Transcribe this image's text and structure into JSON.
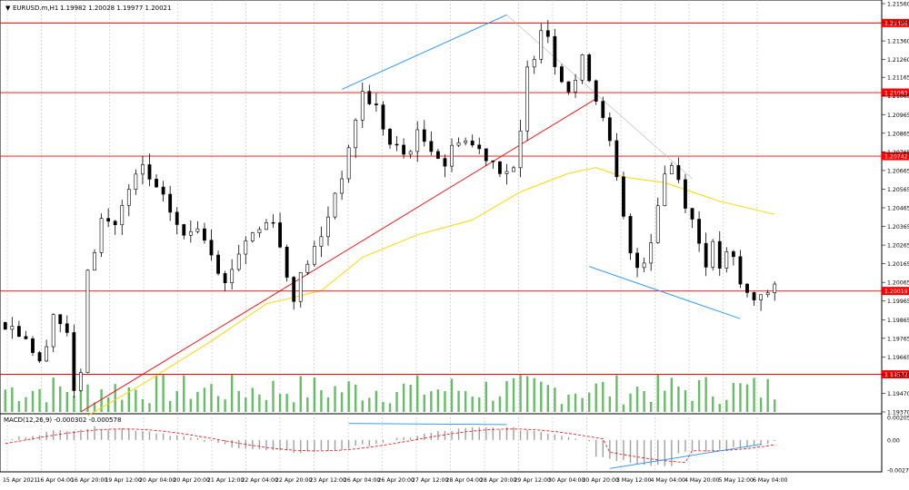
{
  "header": {
    "symbol": "EURUSD.m,H1",
    "ohlc_text": "1.19982 1.20028 1.19977 1.20021"
  },
  "macd": {
    "label": "MACD(12,26,9) -0.000302 -0.000578",
    "ticks": [
      "0.002056",
      "0.00",
      "-0.002743"
    ],
    "range": [
      -0.002743,
      0.002056
    ]
  },
  "price_axis": {
    "ticks": [
      "1.21560",
      "1.21460",
      "1.21360",
      "1.21260",
      "1.21165",
      "1.21065",
      "1.20965",
      "1.20865",
      "1.20765",
      "1.20665",
      "1.20565",
      "1.20465",
      "1.20365",
      "1.20265",
      "1.20165",
      "1.20065",
      "1.19965",
      "1.19865",
      "1.19765",
      "1.19665",
      "1.19570",
      "1.19470",
      "1.19370"
    ]
  },
  "levels": [
    {
      "label": "1.21456",
      "value": 1.21456
    },
    {
      "label": "1.21083",
      "value": 1.21083
    },
    {
      "label": "1.20742",
      "value": 1.20742
    },
    {
      "label": "1.20019",
      "value": 1.20019
    },
    {
      "label": "1.19572",
      "value": 1.19572
    }
  ],
  "time_axis": [
    "15 Apr 2021",
    "16 Apr 04:00",
    "16 Apr 20:00",
    "19 Apr 12:00",
    "20 Apr 04:00",
    "20 Apr 20:00",
    "21 Apr 12:00",
    "22 Apr 04:00",
    "22 Apr 20:00",
    "23 Apr 12:00",
    "26 Apr 04:00",
    "26 Apr 20:00",
    "27 Apr 12:00",
    "28 Apr 04:00",
    "28 Apr 20:00",
    "29 Apr 12:00",
    "30 Apr 04:00",
    "30 Apr 20:00",
    "3 May 12:00",
    "4 May 04:00",
    "4 May 20:00",
    "5 May 12:00",
    "6 May 04:00"
  ],
  "colors": {
    "up": "#000000",
    "down": "#000000",
    "level_line": "#ff0000",
    "level_label_bg": "#ff0000",
    "trend_blue": "#1e90ff",
    "trend_red": "#ff0000",
    "ma": "#ffd700",
    "volume": "#32a832",
    "macd_hist": "#a0a0a0",
    "macd_signal": "#ff0000",
    "grid": "#c0c0c0"
  },
  "chart_data": {
    "type": "candlestick",
    "symbol": "EURUSD.m",
    "timeframe": "H1",
    "ylim": [
      1.1937,
      1.2156
    ],
    "close_path": [
      [
        0,
        1.1985
      ],
      [
        3,
        1.1978
      ],
      [
        5,
        1.1962
      ],
      [
        7,
        1.199
      ],
      [
        9,
        1.198
      ],
      [
        10,
        1.1945
      ],
      [
        11,
        1.196
      ],
      [
        12,
        1.201
      ],
      [
        14,
        1.204
      ],
      [
        16,
        1.2038
      ],
      [
        18,
        1.2055
      ],
      [
        20,
        1.2068
      ],
      [
        22,
        1.2055
      ],
      [
        24,
        1.2045
      ],
      [
        26,
        1.203
      ],
      [
        28,
        1.2038
      ],
      [
        30,
        1.2025
      ],
      [
        32,
        1.2005
      ],
      [
        33,
        1.2015
      ],
      [
        35,
        1.203
      ],
      [
        37,
        1.2035
      ],
      [
        39,
        1.2042
      ],
      [
        40,
        1.2025
      ],
      [
        41,
        1.201
      ],
      [
        42,
        1.2
      ],
      [
        44,
        1.2018
      ],
      [
        46,
        1.203
      ],
      [
        48,
        1.2055
      ],
      [
        50,
        1.2075
      ],
      [
        51,
        1.2095
      ],
      [
        52,
        1.2108
      ],
      [
        54,
        1.21
      ],
      [
        56,
        1.208
      ],
      [
        58,
        1.2075
      ],
      [
        60,
        1.2085
      ],
      [
        62,
        1.208
      ],
      [
        64,
        1.207
      ],
      [
        66,
        1.2085
      ],
      [
        68,
        1.208
      ],
      [
        70,
        1.2075
      ],
      [
        72,
        1.2068
      ],
      [
        74,
        1.2065
      ],
      [
        75,
        1.2085
      ],
      [
        76,
        1.212
      ],
      [
        77,
        1.213
      ],
      [
        78,
        1.2145
      ],
      [
        79,
        1.214
      ],
      [
        80,
        1.2125
      ],
      [
        81,
        1.2118
      ],
      [
        82,
        1.211
      ],
      [
        83,
        1.2115
      ],
      [
        84,
        1.2125
      ],
      [
        85,
        1.2118
      ],
      [
        86,
        1.2105
      ],
      [
        87,
        1.2098
      ],
      [
        88,
        1.208
      ],
      [
        89,
        1.206
      ],
      [
        90,
        1.204
      ],
      [
        91,
        1.202
      ],
      [
        92,
        1.2015
      ],
      [
        93,
        1.202
      ],
      [
        94,
        1.203
      ],
      [
        95,
        1.205
      ],
      [
        96,
        1.2065
      ],
      [
        97,
        1.207
      ],
      [
        98,
        1.2062
      ],
      [
        99,
        1.205
      ],
      [
        100,
        1.204
      ],
      [
        101,
        1.2028
      ],
      [
        102,
        1.2018
      ],
      [
        103,
        1.2025
      ],
      [
        104,
        1.2015
      ],
      [
        105,
        1.202
      ],
      [
        106,
        1.2018
      ],
      [
        107,
        1.2005
      ],
      [
        108,
        1.2
      ],
      [
        109,
        1.1998
      ],
      [
        110,
        1.2002
      ],
      [
        111,
        1.2
      ],
      [
        112,
        1.2002
      ]
    ],
    "ma_path": [
      [
        12,
        1.1935
      ],
      [
        20,
        1.1952
      ],
      [
        30,
        1.1975
      ],
      [
        38,
        1.1995
      ],
      [
        46,
        1.2002
      ],
      [
        52,
        1.202
      ],
      [
        60,
        1.2032
      ],
      [
        68,
        1.204
      ],
      [
        75,
        1.2055
      ],
      [
        82,
        1.2065
      ],
      [
        86,
        1.2068
      ],
      [
        90,
        1.2063
      ],
      [
        96,
        1.206
      ],
      [
        104,
        1.205
      ],
      [
        112,
        1.2043
      ]
    ],
    "x_count": 113
  }
}
